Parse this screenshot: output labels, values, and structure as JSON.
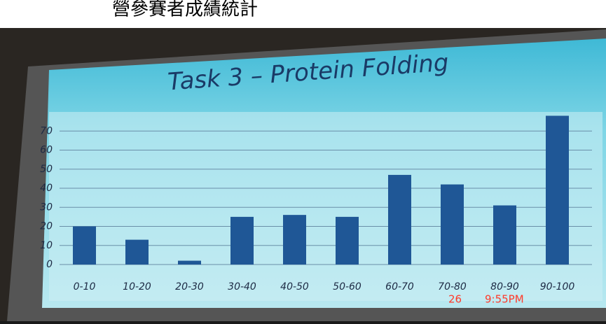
{
  "caption": "營參賽者成績統計",
  "timestamp": {
    "date": "26",
    "time": "9:55PM"
  },
  "chart_data": {
    "type": "bar",
    "title": "Task 3 – Protein Folding",
    "categories": [
      "0-10",
      "10-20",
      "20-30",
      "30-40",
      "40-50",
      "50-60",
      "60-70",
      "70-80",
      "80-90",
      "90-100"
    ],
    "values": [
      20,
      13,
      2,
      25,
      26,
      25,
      47,
      42,
      31,
      78
    ],
    "color": "#1f5796",
    "ylim": [
      0,
      80
    ],
    "yticks": [
      0,
      10,
      20,
      30,
      40,
      50,
      60,
      70
    ],
    "grid": true
  }
}
